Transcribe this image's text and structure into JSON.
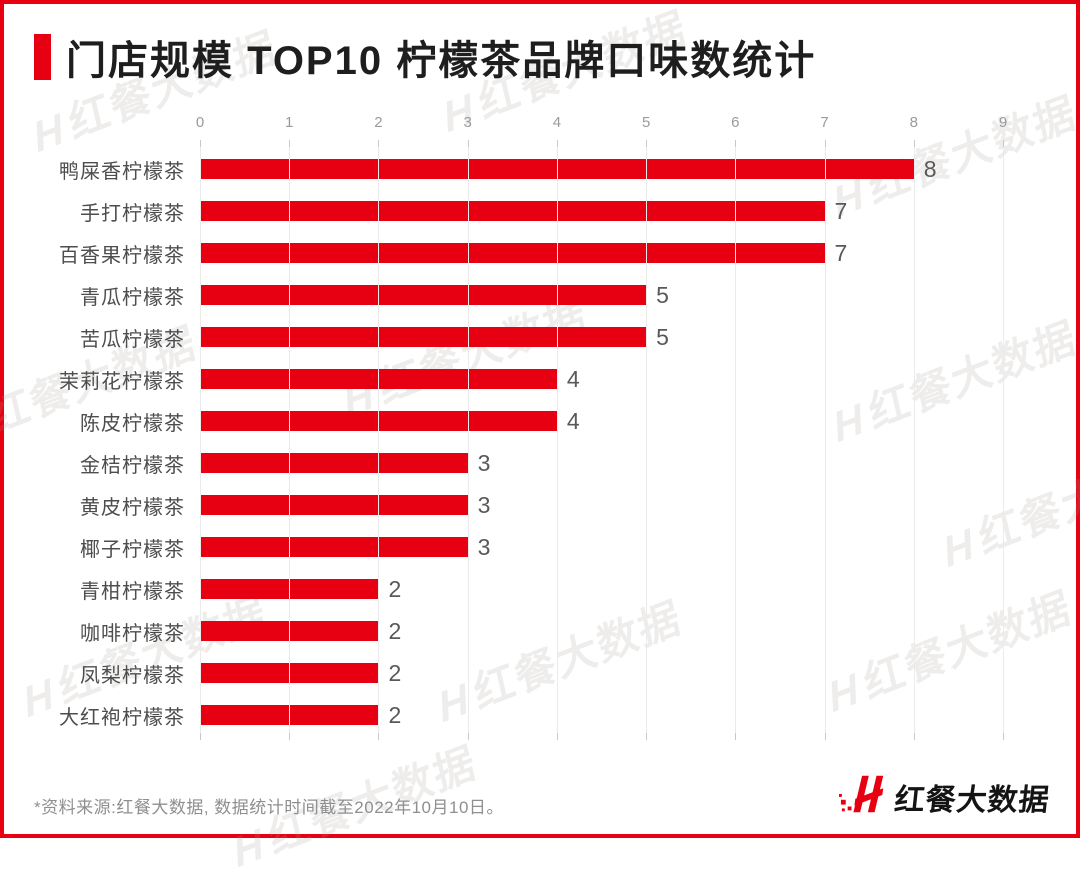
{
  "title": {
    "text": "门店规模 TOP10 柠檬茶品牌口味数统计"
  },
  "chart_data": {
    "type": "bar",
    "orientation": "horizontal",
    "title": "门店规模 TOP10 柠檬茶品牌口味数统计",
    "categories": [
      "鸭屎香柠檬茶",
      "手打柠檬茶",
      "百香果柠檬茶",
      "青瓜柠檬茶",
      "苦瓜柠檬茶",
      "茉莉花柠檬茶",
      "陈皮柠檬茶",
      "金桔柠檬茶",
      "黄皮柠檬茶",
      "椰子柠檬茶",
      "青柑柠檬茶",
      "咖啡柠檬茶",
      "凤梨柠檬茶",
      "大红袍柠檬茶"
    ],
    "values": [
      8,
      7,
      7,
      5,
      5,
      4,
      4,
      3,
      3,
      3,
      2,
      2,
      2,
      2
    ],
    "xlim": [
      0,
      9
    ],
    "x_ticks": [
      0,
      1,
      2,
      3,
      4,
      5,
      6,
      7,
      8,
      9
    ],
    "xlabel": "",
    "ylabel": "",
    "grid": true,
    "legend": "none",
    "bar_color": "#e60012",
    "value_labels_shown": true
  },
  "watermark": {
    "mark": "H",
    "text": "红餐大数据"
  },
  "footer": {
    "source_note": "*资料来源:红餐大数据, 数据统计时间截至2022年10月10日。",
    "logo_text": "红餐大数据"
  },
  "colors": {
    "accent_red": "#e60012",
    "title_text": "#1e1e1e",
    "category_text": "#4d4d4d",
    "value_text": "#595959",
    "axis_text": "#9a9a9a",
    "gridline": "#ebebeb",
    "footer_text": "#8f8f8f",
    "frame_border": "#e60012"
  }
}
